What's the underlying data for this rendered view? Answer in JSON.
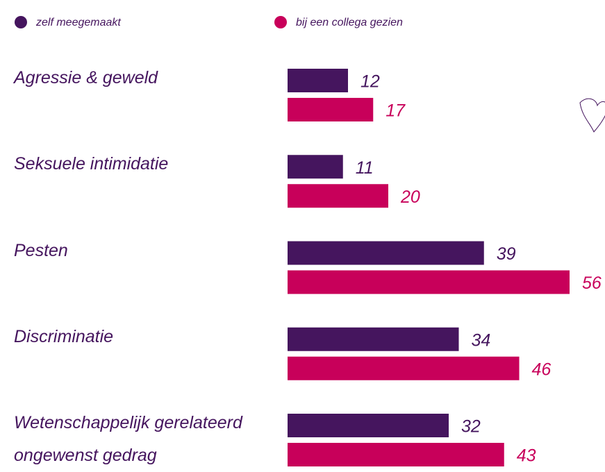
{
  "chart_data": {
    "type": "bar",
    "orientation": "horizontal",
    "categories": [
      "Agressie & geweld",
      "Seksuele intimidatie",
      "Pesten",
      "Discriminatie",
      "Wetenschappelijk gerelateerd ongewenst gedrag"
    ],
    "series": [
      {
        "name": "zelf meegemaakt",
        "color": "#45155e",
        "values": [
          12,
          11,
          39,
          34,
          32
        ]
      },
      {
        "name": "bij een collega gezien",
        "color": "#c8005a",
        "values": [
          17,
          20,
          56,
          46,
          43
        ]
      }
    ],
    "legend": "top-left",
    "grid": false
  }
}
